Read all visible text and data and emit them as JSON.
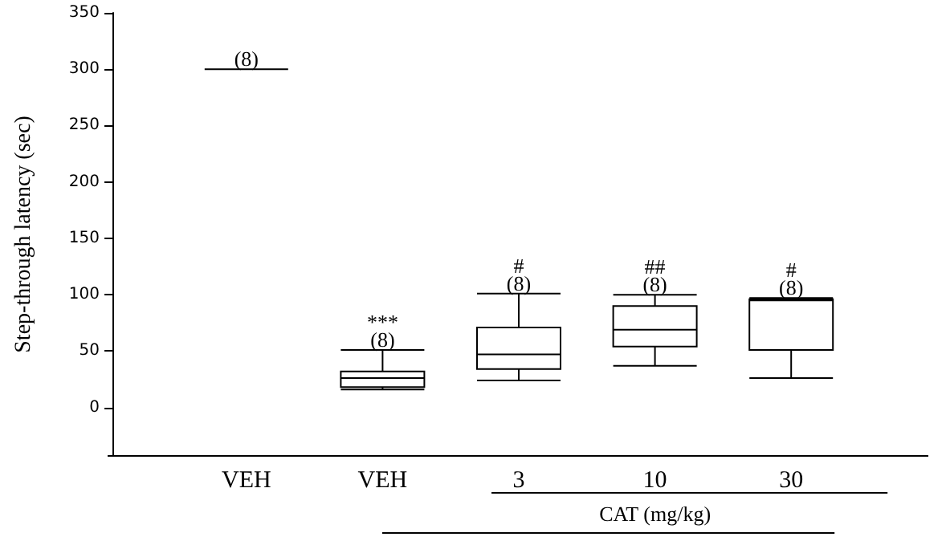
{
  "chart_data": {
    "type": "box",
    "ylabel": "Step-through latency (sec)",
    "xlabel": "CAT (mg/kg)",
    "categories": [
      "VEH",
      "VEH",
      "3",
      "10",
      "30"
    ],
    "boxes": [
      {
        "low": 300,
        "q1": 300,
        "median": 300,
        "q3": 300,
        "high": 300
      },
      {
        "low": 16,
        "q1": 18,
        "median": 26,
        "q3": 32,
        "high": 51
      },
      {
        "low": 24,
        "q1": 34,
        "median": 47,
        "q3": 71,
        "high": 101
      },
      {
        "low": 37,
        "q1": 54,
        "median": 69,
        "q3": 90,
        "high": 100
      },
      {
        "low": 26,
        "q1": 51,
        "median": 95,
        "q3": 96,
        "high": 97
      }
    ],
    "ylim": [
      -43,
      350
    ],
    "yticks": [
      0,
      50,
      100,
      150,
      200,
      250,
      300,
      350
    ],
    "grid": false,
    "annotations": [
      "(8)",
      "***\n(8)",
      "#\n(8)",
      "##\n(8)",
      "#\n(8)"
    ]
  }
}
